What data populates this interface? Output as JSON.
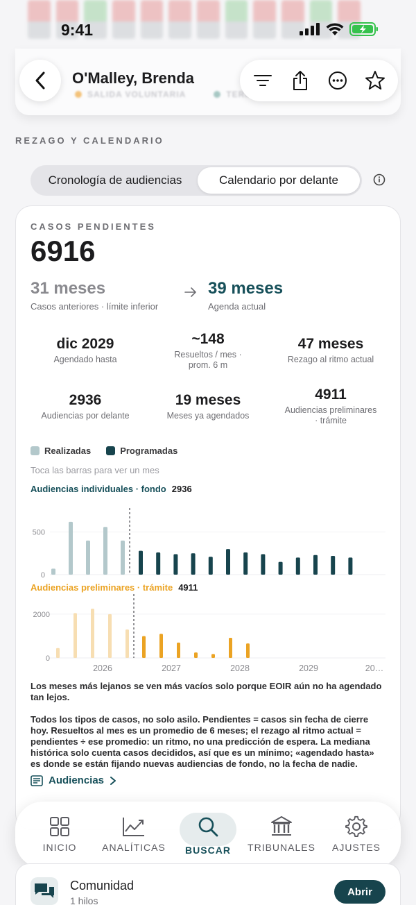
{
  "status": {
    "time": "9:41"
  },
  "nav": {
    "title": "O'Malley, Brenda",
    "subtitle_badge_1": "SALIDA VOLUNTARIA",
    "subtitle_badge_2": "TERM"
  },
  "section_label": "REZAGO Y CALENDARIO",
  "tabs": [
    {
      "label": "Cronología de audiencias",
      "active": false
    },
    {
      "label": "Calendario por delante",
      "active": true
    }
  ],
  "pending": {
    "label": "CASOS PENDIENTES",
    "value": "6916",
    "previous_value": "31 meses",
    "previous_label": "Casos anteriores · límite inferior",
    "current_value": "39 meses",
    "current_label": "Agenda actual"
  },
  "stats": [
    {
      "value": "dic 2029",
      "label": "Agendado hasta"
    },
    {
      "value": "~148",
      "label": "Resueltos / mes · prom. 6 m"
    },
    {
      "value": "47 meses",
      "label": "Rezago al ritmo actual"
    },
    {
      "value": "2936",
      "label": "Audiencias por delante"
    },
    {
      "value": "19 meses",
      "label": "Meses ya agendados"
    },
    {
      "value": "4911",
      "label": "Audiencias preliminares · trámite"
    }
  ],
  "legend": {
    "done": "Realizadas",
    "scheduled": "Programadas"
  },
  "hint": "Toca las barras para ver un mes",
  "colors": {
    "accent": "#17505a",
    "done_teal": "#b3c8cb",
    "sched_teal": "#17444d",
    "done_amber": "#f7deb2",
    "sched_amber": "#eba323"
  },
  "chart_data": [
    {
      "type": "bar",
      "title": "Audiencias individuales · fondo",
      "total": "2936",
      "y_ticks": [
        "500",
        "0"
      ],
      "ylim": [
        0,
        700
      ],
      "realized": [
        70,
        620,
        400,
        560,
        400
      ],
      "scheduled": [
        280,
        260,
        240,
        250,
        210,
        300,
        260,
        240,
        150,
        200,
        230,
        220,
        200
      ]
    },
    {
      "type": "bar",
      "title": "Audiencias preliminares · trámite",
      "total": "4911",
      "y_ticks": [
        "2000",
        "0"
      ],
      "ylim": [
        0,
        2600
      ],
      "realized": [
        450,
        2050,
        2250,
        2000,
        1300
      ],
      "scheduled": [
        1000,
        1100,
        700,
        250,
        180,
        920,
        660
      ],
      "x_ticks": [
        "2026",
        "2027",
        "2028",
        "2029",
        "20…"
      ]
    }
  ],
  "notes": [
    "Los meses más lejanos se ven más vacíos solo porque EOIR aún no ha agendado tan lejos.",
    "Todos los tipos de casos, no solo asilo. Pendientes = casos sin fecha de cierre hoy. Resueltos al mes es un promedio de 6 meses; el rezago al ritmo actual = pendientes ÷ ese promedio: un ritmo, no una predicción de espera. La mediana histórica solo cuenta casos decididos, así que es un mínimo; «agendado hasta» es donde se están fijando nuevas audiencias de fondo, no la fecha de nadie."
  ],
  "link": {
    "label": "Audiencias"
  },
  "tabbar": [
    {
      "label": "INICIO"
    },
    {
      "label": "ANALÍTICAS"
    },
    {
      "label": "BUSCAR"
    },
    {
      "label": "TRIBUNALES"
    },
    {
      "label": "AJUSTES"
    }
  ],
  "community": {
    "title": "Comunidad",
    "subtitle": "1 hilos",
    "button": "Abrir"
  }
}
